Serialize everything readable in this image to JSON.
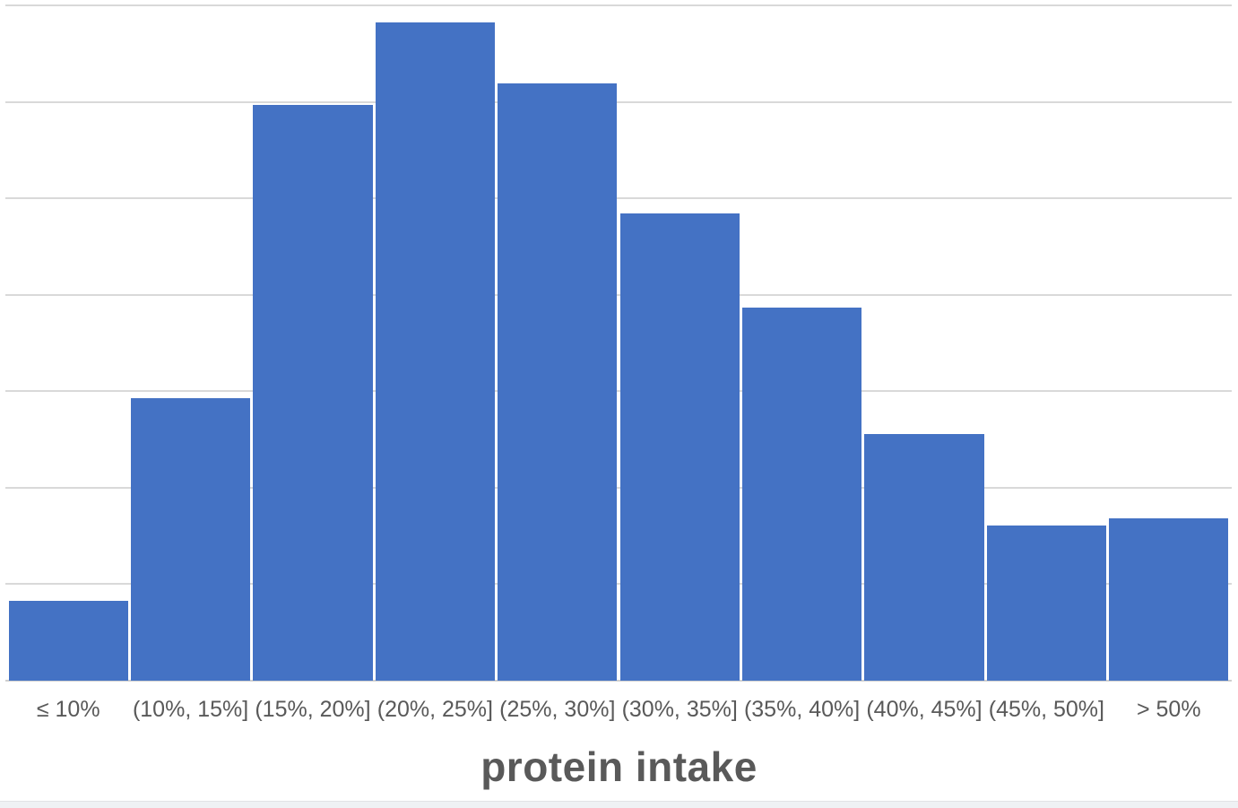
{
  "chart": {
    "x_axis_title": "protein intake",
    "y_axis_labels_visible": false,
    "legend_visible": false
  },
  "colors": {
    "bar_fill": "#4472C4",
    "gridline": "#D9D9D9",
    "axis_line": "#CFCFCF",
    "label_text": "#595959",
    "axis_title_text": "#595959",
    "background": "#FFFFFF",
    "bottom_strip": "#EFF1F4"
  },
  "chart_data": {
    "type": "bar",
    "title": "",
    "xlabel": "protein intake",
    "ylabel": "",
    "categories": [
      "≤ 10%",
      "(10%, 15%]",
      "(15%, 20%]",
      "(20%, 25%]",
      "(25%, 30%]",
      "(30%, 35%]",
      "(35%, 40%]",
      "(40%, 45%]",
      "(45%, 50%]",
      "> 50%"
    ],
    "values": [
      0.83,
      2.93,
      5.97,
      6.82,
      6.19,
      4.84,
      3.87,
      2.56,
      1.61,
      1.68
    ],
    "ylim": [
      0,
      7
    ],
    "gridline_step": 1,
    "grid": true,
    "legend_position": "none",
    "notes": "y-axis has gridlines but no tick labels; values are in gridline units"
  }
}
